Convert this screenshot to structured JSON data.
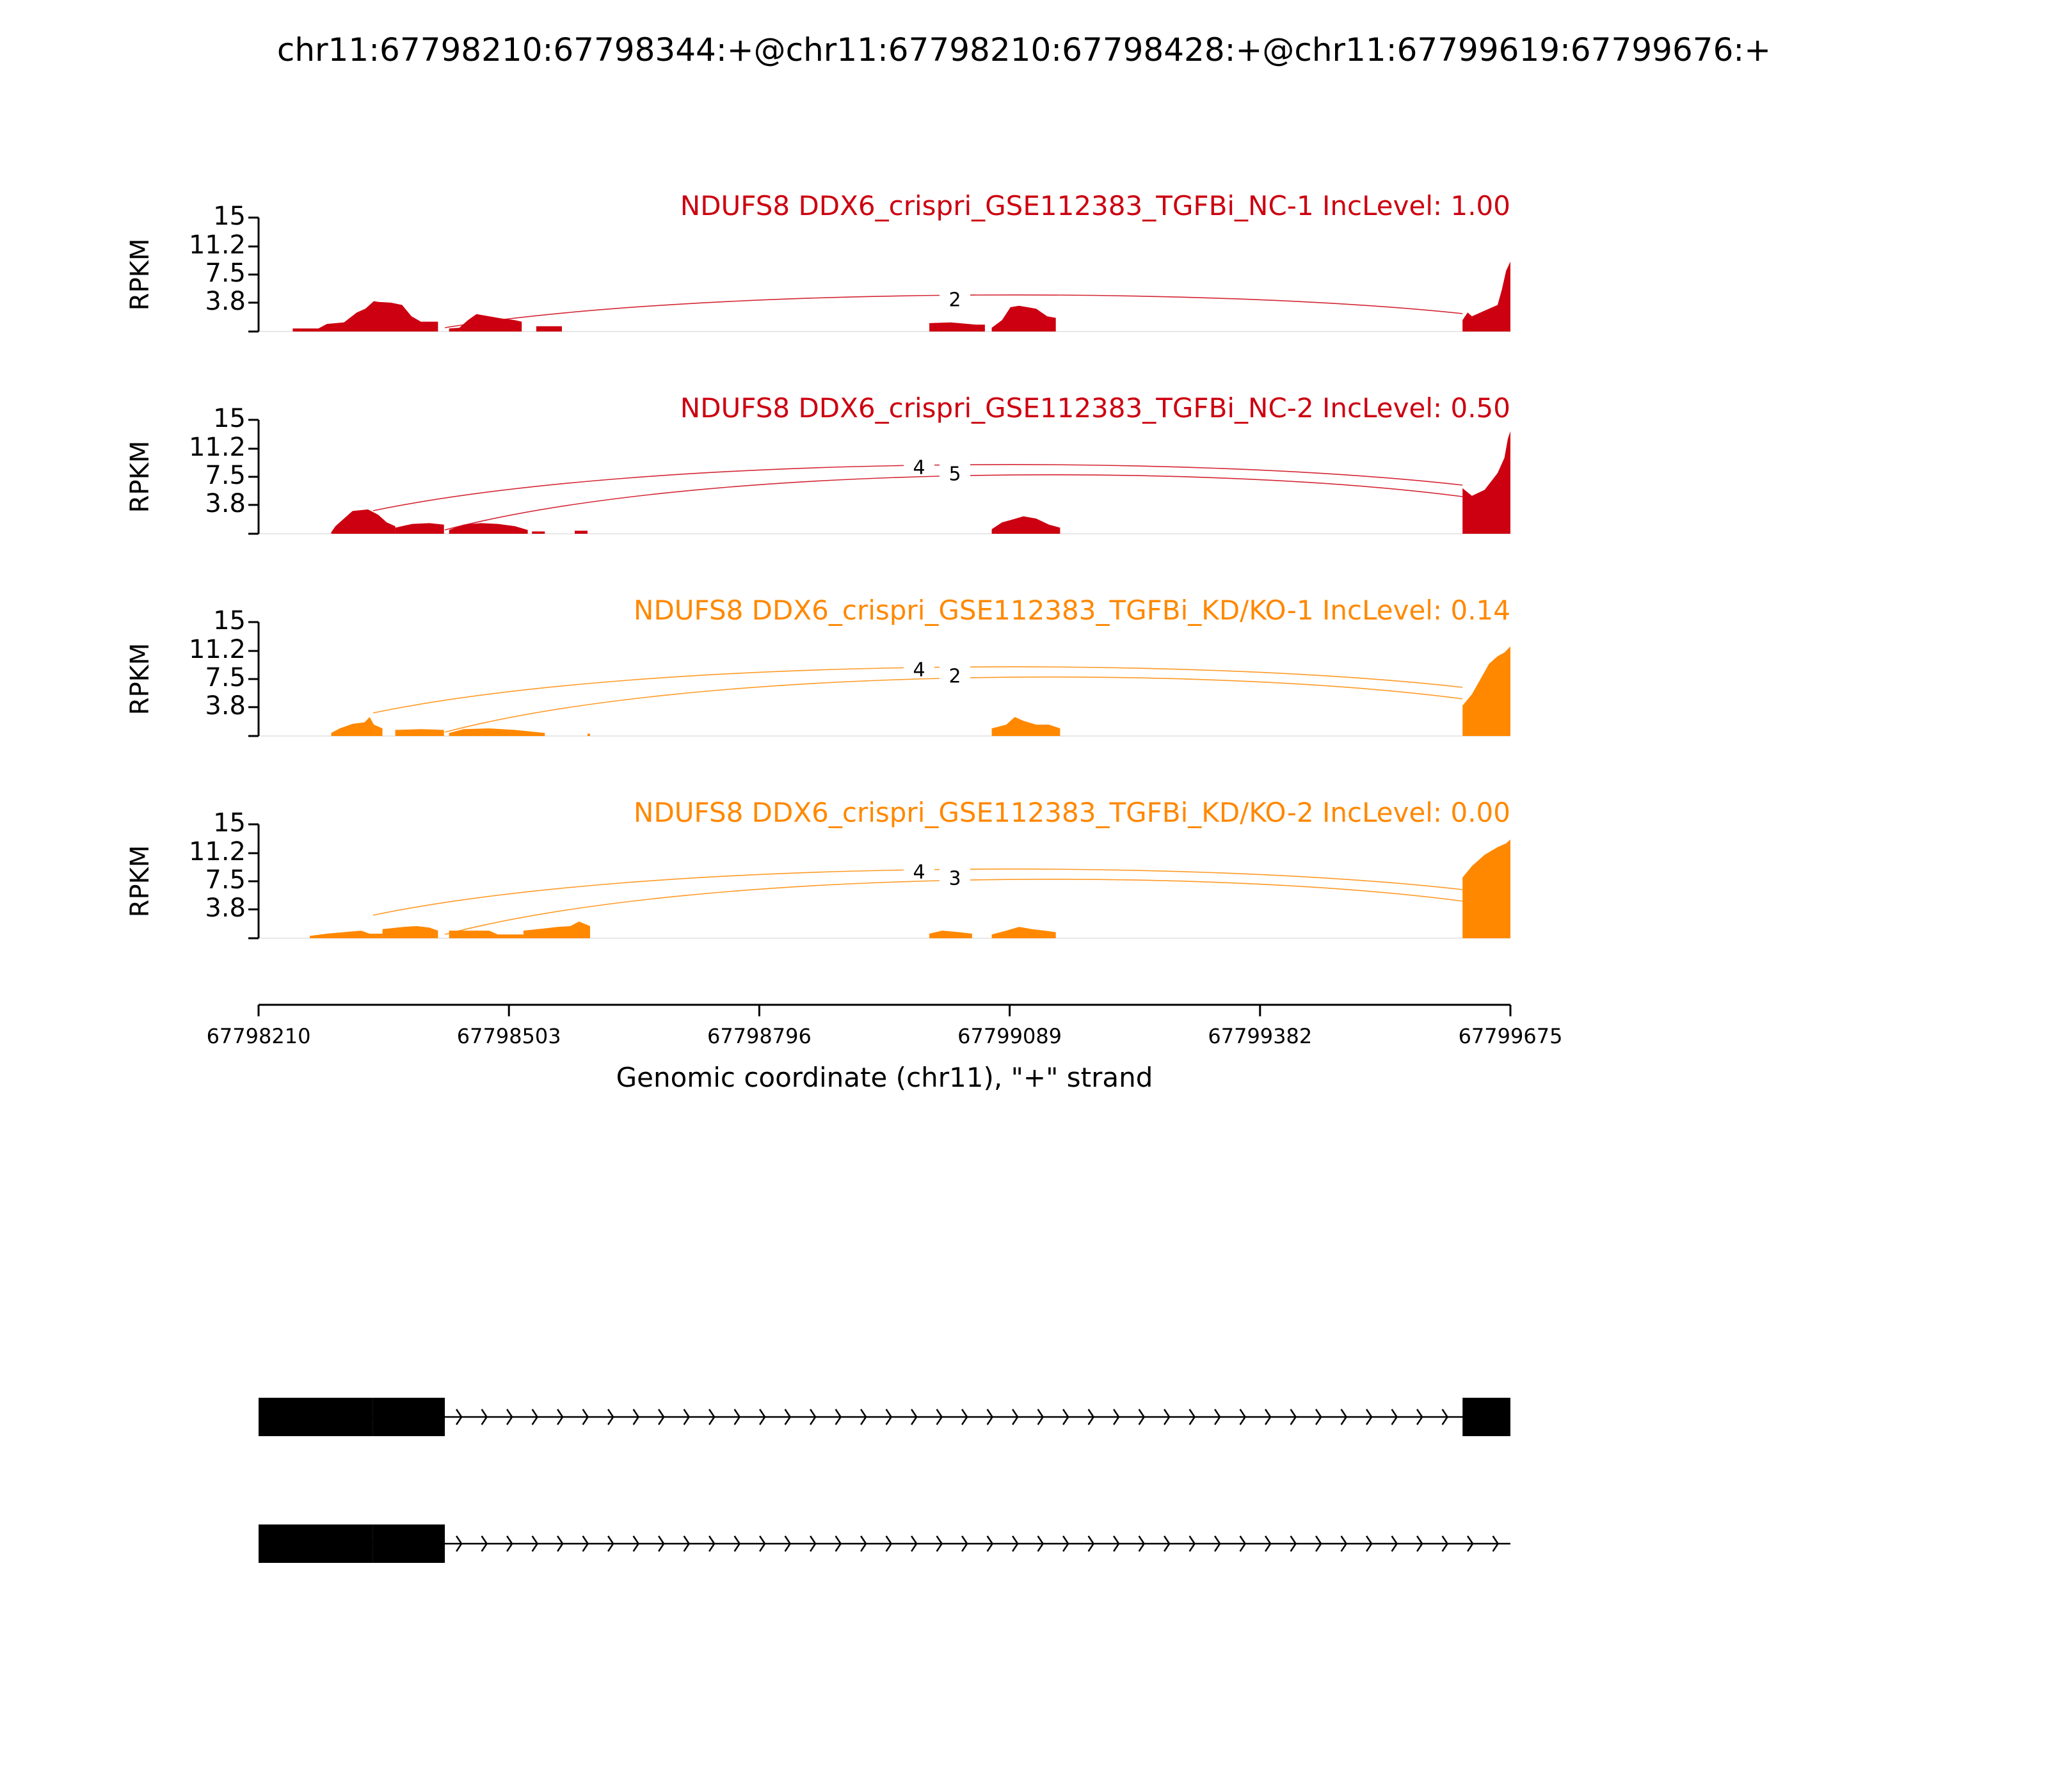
{
  "title": "chr11:67798210:67798344:+@chr11:67798210:67798428:+@chr11:67799619:67799676:+",
  "colors": {
    "nc": "#cc0010",
    "kd": "#ff8800",
    "axis": "#000000",
    "gene": "#000000"
  },
  "chart_data": {
    "type": "area",
    "title": "chr11:67798210:67798344:+@chr11:67798210:67798428:+@chr11:67799619:67799676:+",
    "xlabel": "Genomic coordinate (chr11), \"+\" strand",
    "ylabel": "RPKM",
    "xlim": [
      67798210,
      67799675
    ],
    "ylim": [
      0,
      15
    ],
    "x_ticks": [
      "67798210",
      "67798503",
      "67798796",
      "67799089",
      "67799382",
      "67799675"
    ],
    "y_ticks": [
      "15",
      "11.2",
      "7.5",
      "3.8"
    ],
    "tracks": [
      {
        "name": "NDUFS8 DDX6_crispri_GSE112383_TGFBi_NC-1 IncLevel: 1.00",
        "color": "#cc0010",
        "segments": [
          [
            [
              67798250,
              0.4
            ],
            [
              67798280,
              0.4
            ],
            [
              67798290,
              1.0
            ],
            [
              67798310,
              1.2
            ],
            [
              67798325,
              2.5
            ],
            [
              67798335,
              3.0
            ],
            [
              67798345,
              4.0
            ],
            [
              67798350,
              3.9
            ],
            [
              67798365,
              3.8
            ],
            [
              67798378,
              3.5
            ],
            [
              67798389,
              2.0
            ],
            [
              67798400,
              1.3
            ],
            [
              67798420,
              1.3
            ]
          ],
          [
            [
              67798433,
              0.4
            ],
            [
              67798445,
              0.5
            ],
            [
              67798455,
              1.5
            ],
            [
              67798465,
              2.3
            ],
            [
              67798480,
              2.0
            ],
            [
              67798495,
              1.7
            ],
            [
              67798510,
              1.5
            ],
            [
              67798518,
              1.3
            ]
          ],
          [
            [
              67798535,
              0.7
            ],
            [
              67798565,
              0.7
            ]
          ],
          [
            [
              67798995,
              1.1
            ],
            [
              67799020,
              1.2
            ],
            [
              67799050,
              0.9
            ],
            [
              67799060,
              0.9
            ]
          ],
          [
            [
              67799068,
              0.5
            ],
            [
              67799080,
              1.5
            ],
            [
              67799090,
              3.2
            ],
            [
              67799100,
              3.4
            ],
            [
              67799110,
              3.2
            ],
            [
              67799120,
              3.0
            ],
            [
              67799133,
              2.0
            ],
            [
              67799143,
              1.8
            ]
          ],
          [
            [
              67799619,
              1.5
            ],
            [
              67799625,
              2.5
            ],
            [
              67799630,
              2.0
            ],
            [
              67799640,
              2.5
            ],
            [
              67799650,
              3.0
            ],
            [
              67799660,
              3.5
            ],
            [
              67799665,
              5.5
            ],
            [
              67799670,
              8.0
            ],
            [
              67799675,
              9.2
            ]
          ]
        ],
        "junctions": [
          {
            "label": "2",
            "start": 67798428,
            "end": 67799619
          }
        ]
      },
      {
        "name": "NDUFS8 DDX6_crispri_GSE112383_TGFBi_NC-2 IncLevel: 0.50",
        "color": "#cc0010",
        "segments": [
          [
            [
              67798295,
              0.2
            ],
            [
              67798300,
              1.0
            ],
            [
              67798310,
              2.0
            ],
            [
              67798320,
              3.0
            ],
            [
              67798338,
              3.2
            ],
            [
              67798350,
              2.5
            ],
            [
              67798360,
              1.5
            ],
            [
              67798370,
              1.0
            ]
          ],
          [
            [
              67798370,
              0.8
            ],
            [
              67798390,
              1.3
            ],
            [
              67798410,
              1.4
            ],
            [
              67798427,
              1.2
            ]
          ],
          [
            [
              67798433,
              0.5
            ],
            [
              67798450,
              1.2
            ],
            [
              67798470,
              1.4
            ],
            [
              67798490,
              1.3
            ],
            [
              67798510,
              1.0
            ],
            [
              67798525,
              0.5
            ]
          ],
          [
            [
              67798530,
              0.3
            ],
            [
              67798545,
              0.3
            ]
          ],
          [
            [
              67798580,
              0.4
            ],
            [
              67798595,
              0.4
            ]
          ],
          [
            [
              67799068,
              0.6
            ],
            [
              67799080,
              1.5
            ],
            [
              67799090,
              1.8
            ],
            [
              67799105,
              2.3
            ],
            [
              67799120,
              2.0
            ],
            [
              67799135,
              1.2
            ],
            [
              67799148,
              0.8
            ]
          ],
          [
            [
              67799619,
              6.0
            ],
            [
              67799630,
              5.0
            ],
            [
              67799645,
              5.8
            ],
            [
              67799660,
              8.0
            ],
            [
              67799668,
              10.0
            ],
            [
              67799672,
              12.5
            ],
            [
              67799675,
              13.5
            ]
          ]
        ],
        "junctions": [
          {
            "label": "4",
            "start": 67798344,
            "end": 67799619
          },
          {
            "label": "5",
            "start": 67798428,
            "end": 67799619
          }
        ]
      },
      {
        "name": "NDUFS8 DDX6_crispri_GSE112383_TGFBi_KD/KO-1 IncLevel: 0.14",
        "color": "#ff8800",
        "segments": [
          [
            [
              67798295,
              0.4
            ],
            [
              67798305,
              1.0
            ],
            [
              67798320,
              1.6
            ],
            [
              67798334,
              1.8
            ],
            [
              67798340,
              2.5
            ],
            [
              67798345,
              1.5
            ],
            [
              67798355,
              1.0
            ]
          ],
          [
            [
              67798370,
              0.8
            ],
            [
              67798400,
              0.9
            ],
            [
              67798427,
              0.8
            ]
          ],
          [
            [
              67798433,
              0.4
            ],
            [
              67798450,
              0.9
            ],
            [
              67798480,
              1.0
            ],
            [
              67798510,
              0.8
            ],
            [
              67798545,
              0.4
            ]
          ],
          [
            [
              67798595,
              0.3
            ],
            [
              67798598,
              0.3
            ]
          ],
          [
            [
              67799068,
              1.0
            ],
            [
              67799085,
              1.5
            ],
            [
              67799095,
              2.5
            ],
            [
              67799105,
              2.0
            ],
            [
              67799120,
              1.5
            ],
            [
              67799135,
              1.5
            ],
            [
              67799148,
              1.0
            ]
          ],
          [
            [
              67799619,
              4.0
            ],
            [
              67799630,
              5.5
            ],
            [
              67799640,
              7.5
            ],
            [
              67799650,
              9.5
            ],
            [
              67799660,
              10.5
            ],
            [
              67799668,
              11.0
            ],
            [
              67799675,
              11.8
            ]
          ]
        ],
        "junctions": [
          {
            "label": "4",
            "start": 67798344,
            "end": 67799619
          },
          {
            "label": "2",
            "start": 67798428,
            "end": 67799619
          }
        ]
      },
      {
        "name": "NDUFS8 DDX6_crispri_GSE112383_TGFBi_KD/KO-2 IncLevel: 0.00",
        "color": "#ff8800",
        "segments": [
          [
            [
              67798270,
              0.3
            ],
            [
              67798290,
              0.6
            ],
            [
              67798310,
              0.8
            ],
            [
              67798330,
              1.0
            ],
            [
              67798340,
              0.6
            ],
            [
              67798355,
              0.6
            ]
          ],
          [
            [
              67798355,
              1.2
            ],
            [
              67798380,
              1.5
            ],
            [
              67798395,
              1.6
            ],
            [
              67798410,
              1.4
            ],
            [
              67798420,
              1.0
            ]
          ],
          [
            [
              67798433,
              1.0
            ],
            [
              67798460,
              1.0
            ],
            [
              67798480,
              1.0
            ],
            [
              67798490,
              0.5
            ],
            [
              67798520,
              0.5
            ]
          ],
          [
            [
              67798520,
              1.0
            ],
            [
              67798545,
              1.3
            ],
            [
              67798560,
              1.5
            ],
            [
              67798575,
              1.6
            ],
            [
              67798585,
              2.2
            ],
            [
              67798598,
              1.6
            ]
          ],
          [
            [
              67798995,
              0.6
            ],
            [
              67799010,
              1.0
            ],
            [
              67799030,
              0.8
            ],
            [
              67799045,
              0.6
            ]
          ],
          [
            [
              67799068,
              0.5
            ],
            [
              67799085,
              1.0
            ],
            [
              67799100,
              1.5
            ],
            [
              67799115,
              1.2
            ],
            [
              67799130,
              1.0
            ],
            [
              67799143,
              0.8
            ]
          ],
          [
            [
              67799619,
              8.0
            ],
            [
              67799630,
              9.5
            ],
            [
              67799645,
              11.0
            ],
            [
              67799660,
              12.0
            ],
            [
              67799670,
              12.5
            ],
            [
              67799675,
              13.0
            ]
          ]
        ],
        "junctions": [
          {
            "label": "4",
            "start": 67798344,
            "end": 67799619
          },
          {
            "label": "3",
            "start": 67798428,
            "end": 67799619
          }
        ]
      }
    ],
    "gene_models": [
      {
        "exons": [
          [
            67798210,
            67798344
          ],
          [
            67798344,
            67798428
          ],
          [
            67799619,
            67799675
          ]
        ],
        "line": [
          67798210,
          67799675
        ]
      },
      {
        "exons": [
          [
            67798210,
            67798344
          ],
          [
            67798344,
            67798428
          ]
        ],
        "line": [
          67798210,
          67799675
        ]
      }
    ]
  }
}
